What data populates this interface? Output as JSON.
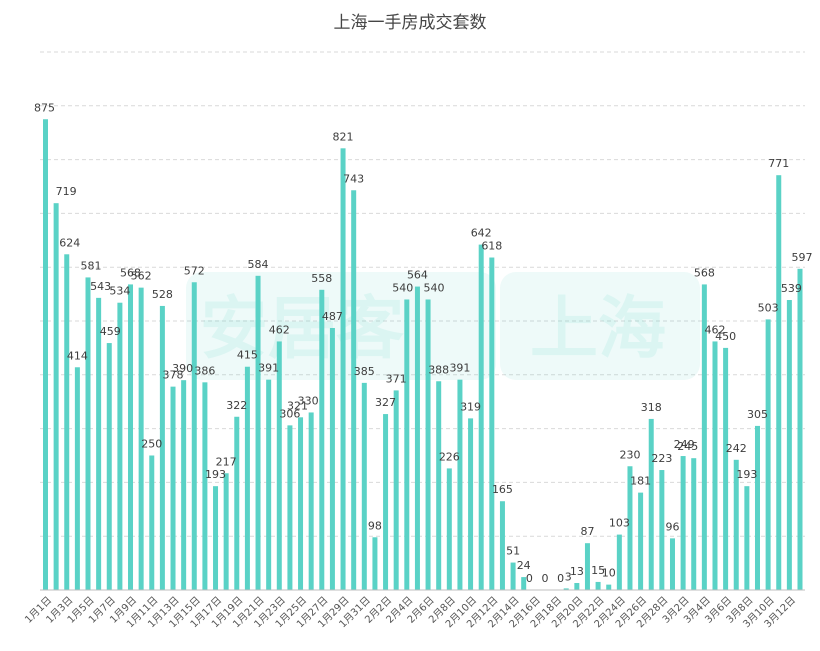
{
  "chart_data": {
    "type": "bar",
    "title": "上海一手房成交套数",
    "watermark": {
      "left": "安居客",
      "right": "上海"
    },
    "color": "#5ad2c6",
    "grid": true,
    "ylim": [
      0,
      1000
    ],
    "categories": [
      "1月1日",
      "1月2日",
      "1月3日",
      "1月4日",
      "1月5日",
      "1月6日",
      "1月7日",
      "1月8日",
      "1月9日",
      "1月10日",
      "1月11日",
      "1月12日",
      "1月13日",
      "1月14日",
      "1月15日",
      "1月16日",
      "1月17日",
      "1月18日",
      "1月19日",
      "1月20日",
      "1月21日",
      "1月22日",
      "1月23日",
      "1月24日",
      "1月25日",
      "1月26日",
      "1月27日",
      "1月28日",
      "1月29日",
      "1月30日",
      "1月31日",
      "2月1日",
      "2月2日",
      "2月3日",
      "2月4日",
      "2月5日",
      "2月6日",
      "2月7日",
      "2月8日",
      "2月9日",
      "2月10日",
      "2月11日",
      "2月12日",
      "2月13日",
      "2月14日",
      "2月15日",
      "2月16日",
      "2月17日",
      "2月18日",
      "2月19日",
      "2月20日",
      "2月21日",
      "2月22日",
      "2月23日",
      "2月24日",
      "2月25日",
      "2月26日",
      "2月27日",
      "2月28日",
      "3月1日",
      "3月2日",
      "3月3日",
      "3月4日",
      "3月5日",
      "3月6日",
      "3月7日",
      "3月8日",
      "3月9日",
      "3月10日",
      "3月11日",
      "3月12日",
      "3月13日"
    ],
    "values": [
      875,
      719,
      624,
      414,
      581,
      543,
      459,
      534,
      568,
      562,
      250,
      528,
      378,
      390,
      572,
      386,
      193,
      217,
      322,
      415,
      584,
      391,
      462,
      306,
      321,
      330,
      558,
      487,
      821,
      743,
      385,
      98,
      327,
      371,
      540,
      564,
      540,
      388,
      226,
      391,
      319,
      642,
      618,
      165,
      51,
      24,
      0,
      0,
      0,
      3,
      13,
      87,
      15,
      10,
      103,
      230,
      181,
      318,
      223,
      96,
      249,
      245,
      568,
      462,
      450,
      242,
      193,
      305,
      503,
      771,
      539,
      597
    ],
    "shown_tick_labels": [
      "1月1日",
      "1月3日",
      "1月5日",
      "1月7日",
      "1月9日",
      "1月11日",
      "1月13日",
      "1月15日",
      "1月17日",
      "1月19日",
      "1月21日",
      "1月23日",
      "1月25日",
      "1月27日",
      "1月29日",
      "1月31日",
      "2月2日",
      "2月4日",
      "2月6日",
      "2月8日",
      "2月10日",
      "2月12日",
      "2月14日",
      "2月16日",
      "2月18日",
      "2月20日",
      "2月22日",
      "2月24日",
      "2月26日",
      "2月28日",
      "3月2日",
      "3月4日",
      "3月6日",
      "3月8日",
      "3月10日",
      "3月12日"
    ]
  }
}
